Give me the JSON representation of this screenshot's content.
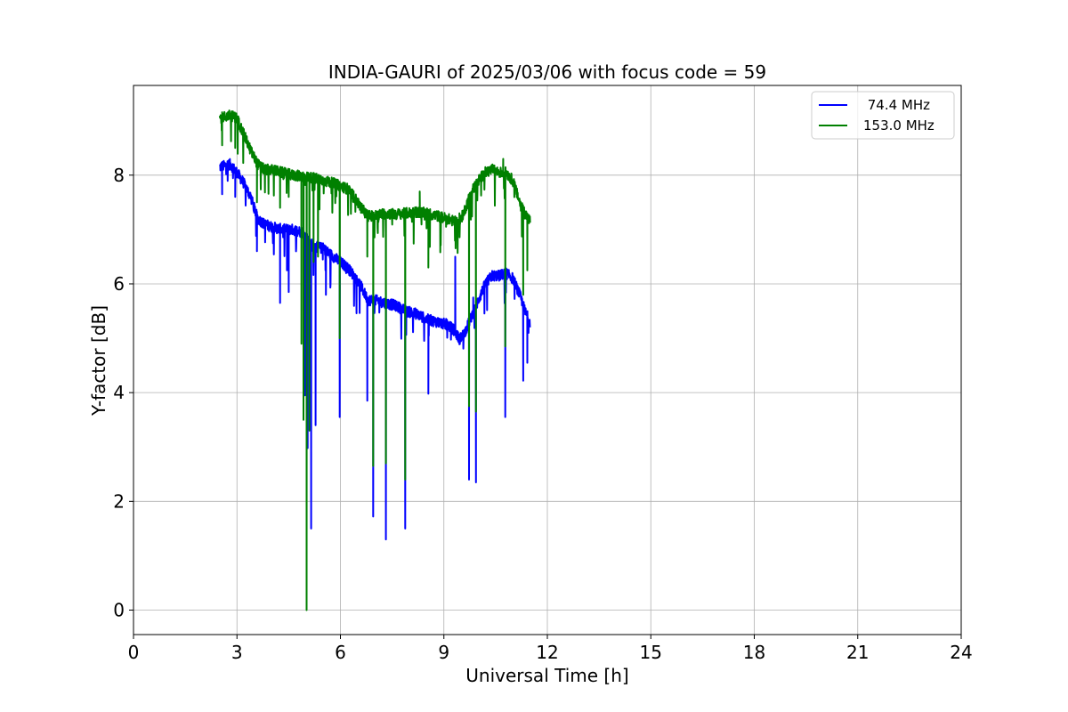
{
  "chart_data": {
    "type": "line",
    "title": "INDIA-GAURI of 2025/03/06 with focus code = 59",
    "xlabel": "Universal Time [h]",
    "ylabel": "Y-factor [dB]",
    "xlim": [
      0,
      24
    ],
    "ylim": [
      -0.45,
      9.65
    ],
    "xticks": [
      0,
      3,
      6,
      9,
      12,
      15,
      18,
      21,
      24
    ],
    "yticks": [
      0,
      2,
      4,
      6,
      8
    ],
    "grid": true,
    "legend_position": "top-right",
    "series": [
      {
        "name": " 74.4 MHz",
        "color": "#0000ff",
        "baseline": [
          [
            2.5,
            8.15
          ],
          [
            2.8,
            8.2
          ],
          [
            3.0,
            8.05
          ],
          [
            3.2,
            7.85
          ],
          [
            3.4,
            7.6
          ],
          [
            3.6,
            7.2
          ],
          [
            3.8,
            7.1
          ],
          [
            4.0,
            7.05
          ],
          [
            4.3,
            7.0
          ],
          [
            4.6,
            7.0
          ],
          [
            4.9,
            6.95
          ],
          [
            5.2,
            6.7
          ],
          [
            5.5,
            6.65
          ],
          [
            5.8,
            6.5
          ],
          [
            6.0,
            6.4
          ],
          [
            6.2,
            6.3
          ],
          [
            6.4,
            6.15
          ],
          [
            6.6,
            5.95
          ],
          [
            6.8,
            5.7
          ],
          [
            7.0,
            5.7
          ],
          [
            7.3,
            5.65
          ],
          [
            7.6,
            5.6
          ],
          [
            7.9,
            5.5
          ],
          [
            8.2,
            5.45
          ],
          [
            8.5,
            5.35
          ],
          [
            8.8,
            5.3
          ],
          [
            9.1,
            5.25
          ],
          [
            9.3,
            5.15
          ],
          [
            9.45,
            4.98
          ],
          [
            9.6,
            5.1
          ],
          [
            9.8,
            5.4
          ],
          [
            10.0,
            5.7
          ],
          [
            10.2,
            6.0
          ],
          [
            10.4,
            6.15
          ],
          [
            10.6,
            6.15
          ],
          [
            10.8,
            6.2
          ],
          [
            11.0,
            6.1
          ],
          [
            11.2,
            5.8
          ],
          [
            11.35,
            5.5
          ],
          [
            11.5,
            5.3
          ]
        ],
        "spikes": [
          [
            2.57,
            7.65
          ],
          [
            2.95,
            7.6
          ],
          [
            3.58,
            6.6
          ],
          [
            4.25,
            5.65
          ],
          [
            4.5,
            5.85
          ],
          [
            4.97,
            3.95
          ],
          [
            5.05,
            2.98
          ],
          [
            5.15,
            1.5
          ],
          [
            5.28,
            3.4
          ],
          [
            5.58,
            5.8
          ],
          [
            5.98,
            3.55
          ],
          [
            6.78,
            3.85
          ],
          [
            6.95,
            1.72
          ],
          [
            7.32,
            1.3
          ],
          [
            7.88,
            1.5
          ],
          [
            8.55,
            3.98
          ],
          [
            9.73,
            2.4
          ],
          [
            9.93,
            2.35
          ],
          [
            10.78,
            3.55
          ],
          [
            11.3,
            4.22
          ],
          [
            11.42,
            4.55
          ]
        ],
        "peaks": [
          [
            9.33,
            6.5
          ],
          [
            9.85,
            5.75
          ],
          [
            4.45,
            6.25
          ]
        ]
      },
      {
        "name": "153.0 MHz",
        "color": "#008000",
        "baseline": [
          [
            2.5,
            9.05
          ],
          [
            2.8,
            9.1
          ],
          [
            3.0,
            9.05
          ],
          [
            3.2,
            8.75
          ],
          [
            3.4,
            8.45
          ],
          [
            3.6,
            8.2
          ],
          [
            3.8,
            8.1
          ],
          [
            4.0,
            8.1
          ],
          [
            4.3,
            8.05
          ],
          [
            4.6,
            8.0
          ],
          [
            4.9,
            7.98
          ],
          [
            5.2,
            7.95
          ],
          [
            5.5,
            7.9
          ],
          [
            5.8,
            7.85
          ],
          [
            6.0,
            7.8
          ],
          [
            6.2,
            7.75
          ],
          [
            6.4,
            7.6
          ],
          [
            6.6,
            7.4
          ],
          [
            6.8,
            7.25
          ],
          [
            7.0,
            7.25
          ],
          [
            7.3,
            7.3
          ],
          [
            7.6,
            7.28
          ],
          [
            7.9,
            7.3
          ],
          [
            8.2,
            7.32
          ],
          [
            8.5,
            7.3
          ],
          [
            8.8,
            7.25
          ],
          [
            9.1,
            7.2
          ],
          [
            9.3,
            7.15
          ],
          [
            9.45,
            7.12
          ],
          [
            9.6,
            7.35
          ],
          [
            9.8,
            7.7
          ],
          [
            10.0,
            7.9
          ],
          [
            10.2,
            8.05
          ],
          [
            10.4,
            8.1
          ],
          [
            10.6,
            8.05
          ],
          [
            10.8,
            8.05
          ],
          [
            11.0,
            7.9
          ],
          [
            11.2,
            7.5
          ],
          [
            11.35,
            7.3
          ],
          [
            11.5,
            7.15
          ]
        ],
        "spikes": [
          [
            2.57,
            8.55
          ],
          [
            2.95,
            8.5
          ],
          [
            3.58,
            7.5
          ],
          [
            4.25,
            7.4
          ],
          [
            4.5,
            7.6
          ],
          [
            4.87,
            4.9
          ],
          [
            4.93,
            3.5
          ],
          [
            5.02,
            0.0
          ],
          [
            5.1,
            3.3
          ],
          [
            5.22,
            6.4
          ],
          [
            5.35,
            6.5
          ],
          [
            5.98,
            5.0
          ],
          [
            6.78,
            6.5
          ],
          [
            6.95,
            2.65
          ],
          [
            7.32,
            2.7
          ],
          [
            7.88,
            2.4
          ],
          [
            8.55,
            6.3
          ],
          [
            9.73,
            3.75
          ],
          [
            9.93,
            3.65
          ],
          [
            10.78,
            4.85
          ],
          [
            11.3,
            5.8
          ],
          [
            11.42,
            6.25
          ]
        ],
        "peaks": [
          [
            10.72,
            8.3
          ],
          [
            8.3,
            7.7
          ],
          [
            9.45,
            7.3
          ]
        ]
      }
    ]
  }
}
